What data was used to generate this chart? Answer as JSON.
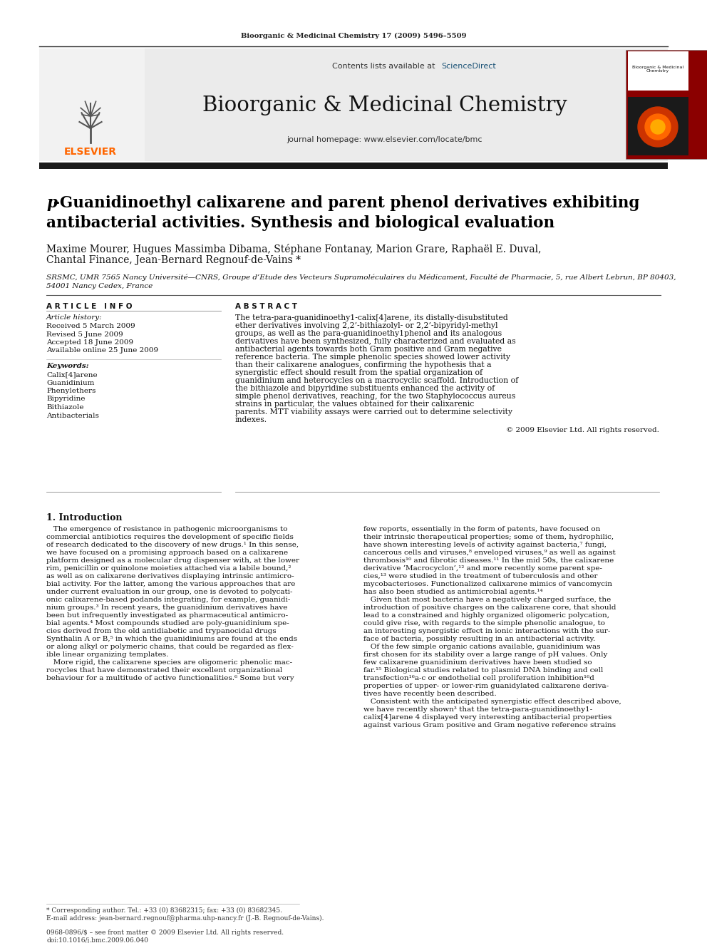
{
  "journal_header": "Bioorganic & Medicinal Chemistry 17 (2009) 5496–5509",
  "journal_name": "Bioorganic & Medicinal Chemistry",
  "journal_homepage": "journal homepage: www.elsevier.com/locate/bmc",
  "contents_line": "Contents lists available at ",
  "sciencedirect_text": "ScienceDirect",
  "title_p": "p",
  "title_rest_line1": "-Guanidinoethyl calixarene and parent phenol derivatives exhibiting",
  "title_line2": "antibacterial activities. Synthesis and biological evaluation",
  "authors_line1": "Maxime Mourer, Hugues Massimba Dibama, Stéphane Fontanay, Marion Grare, Raphaël E. Duval,",
  "authors_line2": "Chantal Finance, Jean-Bernard Regnouf-de-Vains *",
  "affiliation_line1": "SRSMC, UMR 7565 Nancy Université—CNRS, Groupe d’Etude des Vecteurs Supramoléculaires du Médicament, Faculté de Pharmacie, 5, rue Albert Lebrun, BP 80403,",
  "affiliation_line2": "54001 Nancy Cedex, France",
  "article_info_label": "A R T I C L E   I N F O",
  "abstract_label": "A B S T R A C T",
  "article_history_label": "Article history:",
  "article_history_lines": [
    "Received 5 March 2009",
    "Revised 5 June 2009",
    "Accepted 18 June 2009",
    "Available online 25 June 2009"
  ],
  "keywords_label": "Keywords:",
  "keywords_lines": [
    "Calix[4]arene",
    "Guanidinium",
    "Phenylethers",
    "Bipyridine",
    "Bithiazole",
    "Antibacterials"
  ],
  "abstract_text": "The tetra-para-guanidinoethy1-calix[4]arene, its distally-disubstituted ether derivatives involving 2,2’-bithiazolyl- or 2,2’-bipyridyl-methyl groups, as well as the para-guanidinoethy1phenol and its analogous derivatives have been synthesized, fully characterized and evaluated as antibacterial agents towards both Gram positive and Gram negative reference bacteria. The simple phenolic species showed lower activity than their calixarene analogues, confirming the hypothesis that a synergistic effect should result from the spatial organization of guanidinium and heterocycles on a macrocyclic scaffold. Introduction of the bithiazole and bipyridine substituents enhanced the activity of simple phenol derivatives, reaching, for the two Staphylococcus aureus strains in particular, the values obtained for their calixarenic parents. MTT viability assays were carried out to determine selectivity indexes.",
  "copyright": "© 2009 Elsevier Ltd. All rights reserved.",
  "intro_heading": "1. Introduction",
  "intro_col1_lines": [
    "   The emergence of resistance in pathogenic microorganisms to",
    "commercial antibiotics requires the development of specific fields",
    "of research dedicated to the discovery of new drugs.¹ In this sense,",
    "we have focused on a promising approach based on a calixarene",
    "platform designed as a molecular drug dispenser with, at the lower",
    "rim, penicillin or quinolone moieties attached via a labile bound,²",
    "as well as on calixarene derivatives displaying intrinsic antimicro-",
    "bial activity. For the latter, among the various approaches that are",
    "under current evaluation in our group, one is devoted to polycati-",
    "onic calixarene-based podands integrating, for example, guanidi-",
    "nium groups.³ In recent years, the guanidinium derivatives have",
    "been but infrequently investigated as pharmaceutical antimicro-",
    "bial agents.⁴ Most compounds studied are poly-guanidinium spe-",
    "cies derived from the old antidiabetic and trypanocidal drugs",
    "Synthalin A or B,⁵ in which the guanidiniums are found at the ends",
    "or along alkyl or polymeric chains, that could be regarded as flex-",
    "ible linear organizing templates.",
    "   More rigid, the calixarene species are oligomeric phenolic mac-",
    "rocycles that have demonstrated their excellent organizational",
    "behaviour for a multitude of active functionalities.⁶ Some but very"
  ],
  "intro_col2_lines": [
    "few reports, essentially in the form of patents, have focused on",
    "their intrinsic therapeutical properties; some of them, hydrophilic,",
    "have shown interesting levels of activity against bacteria,⁷ fungi,",
    "cancerous cells and viruses,⁸ enveloped viruses,⁹ as well as against",
    "thrombosis¹⁰ and fibrotic diseases.¹¹ In the mid 50s, the calixarene",
    "derivative ‘Macrocyclon’,¹² and more recently some parent spe-",
    "cies,¹³ were studied in the treatment of tuberculosis and other",
    "mycobacterioses. Functionalized calixarene mimics of vancomycin",
    "has also been studied as antimicrobial agents.¹⁴",
    "   Given that most bacteria have a negatively charged surface, the",
    "introduction of positive charges on the calixarene core, that should",
    "lead to a constrained and highly organized oligomeric polycation,",
    "could give rise, with regards to the simple phenolic analogue, to",
    "an interesting synergistic effect in ionic interactions with the sur-",
    "face of bacteria, possibly resulting in an antibacterial activity.",
    "   Of the few simple organic cations available, guanidinium was",
    "first chosen for its stability over a large range of pH values. Only",
    "few calixarene guanidinium derivatives have been studied so",
    "far.¹⁵ Biological studies related to plasmid DNA binding and cell",
    "transfection¹⁶a-c or endothelial cell proliferation inhibition¹⁶d",
    "properties of upper- or lower-rim guanidylated calixarene deriva-",
    "tives have recently been described.",
    "   Consistent with the anticipated synergistic effect described above,",
    "we have recently shown³ that the tetra-para-guanidinoethy1-",
    "calix[4]arene 4 displayed very interesting antibacterial properties",
    "against various Gram positive and Gram negative reference strains"
  ],
  "footer_corresponding": "* Corresponding author. Tel.: +33 (0) 83682315; fax: +33 (0) 83682345.",
  "footer_email": "E-mail address: jean-bernard.regnouf@pharma.uhp-nancy.fr (J.-B. Regnouf-de-Vains).",
  "footer_issn": "0968-0896/$ – see front matter © 2009 Elsevier Ltd. All rights reserved.",
  "footer_doi": "doi:10.1016/j.bmc.2009.06.040",
  "elsevier_color": "#FF6600",
  "sciencedirect_color": "#1a5276",
  "header_bg_color": "#ebebeb",
  "black_bar_color": "#1a1a1a",
  "bg_color": "#ffffff",
  "text_color": "#000000"
}
